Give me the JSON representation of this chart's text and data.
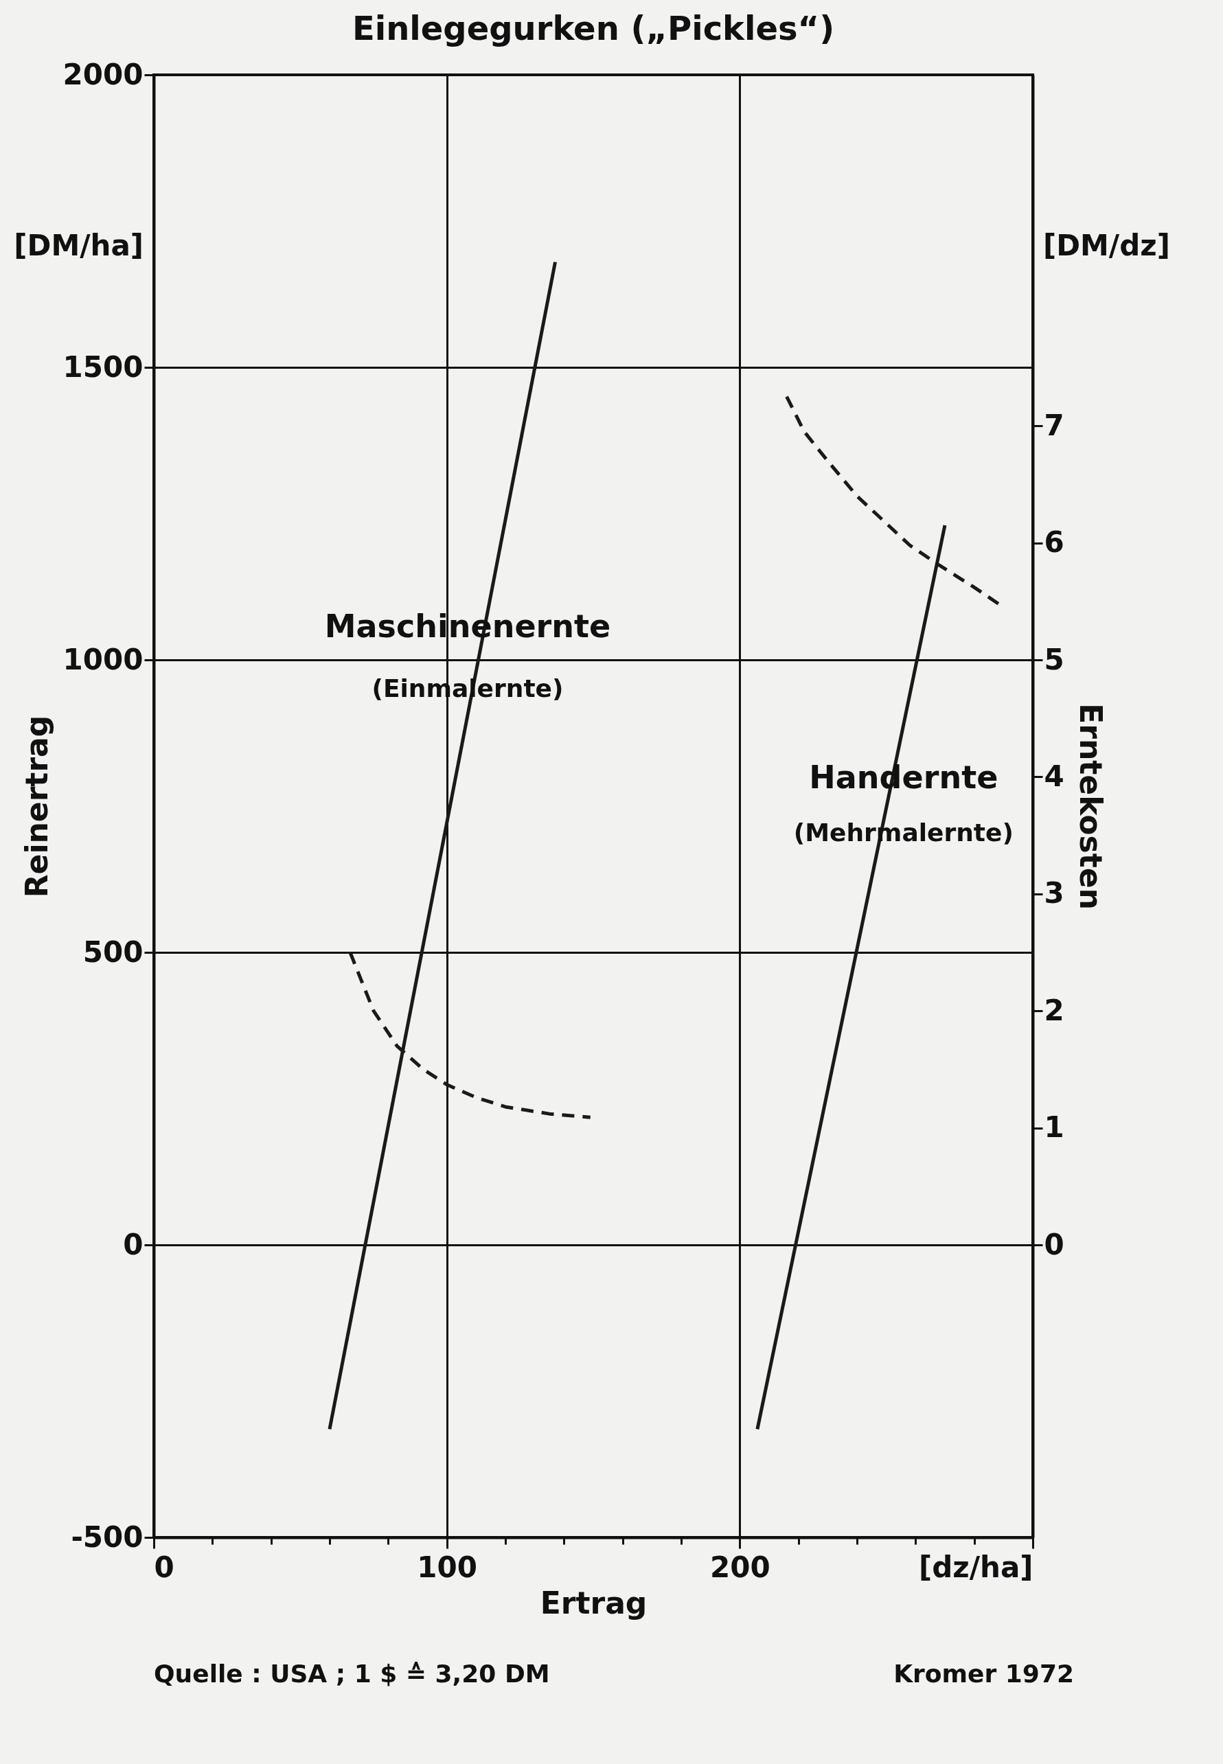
{
  "chart_data": {
    "type": "line",
    "title": "Einlegegurken („Pickles“)",
    "xlabel": "Ertrag",
    "ylabel": "Reinertrag",
    "y2label": "Erntekosten",
    "xlim": [
      0,
      300
    ],
    "xticks": [
      0,
      {
        "value": 20,
        "label": null
      },
      {
        "value": 40,
        "label": null
      },
      {
        "value": 60,
        "label": null
      },
      {
        "value": 80,
        "label": null
      },
      100,
      {
        "value": 120,
        "label": null
      },
      {
        "value": 140,
        "label": null
      },
      {
        "value": 160,
        "label": null
      },
      {
        "value": 180,
        "label": null
      },
      200,
      {
        "value": 220,
        "label": null
      },
      {
        "value": 240,
        "label": null
      },
      {
        "value": 260,
        "label": null
      },
      {
        "value": 280,
        "label": null
      },
      {
        "value": 300,
        "label": "[dz/ha]"
      }
    ],
    "ylim": [
      -500,
      2000
    ],
    "yticks": [
      -500,
      0,
      500,
      1000,
      1500,
      2000
    ],
    "y2lim": [
      -2.5,
      10
    ],
    "y2ticks": [
      0,
      1,
      2,
      3,
      4,
      5,
      6,
      7
    ],
    "grid": true,
    "line_style": "solid",
    "series": [
      {
        "color": "#1a1a1a",
        "x": [
          60,
          137
        ],
        "values": [
          -315,
          1680
        ]
      },
      {
        "color": "#1a1a1a",
        "x": [
          206,
          270
        ],
        "values": [
          -315,
          1230
        ]
      },
      {
        "color": "#1a1a1a",
        "axis": "y2",
        "line_style": "dashed",
        "x": [
          67,
          75,
          83,
          92,
          100,
          110,
          120,
          135,
          149
        ],
        "values": [
          2.5,
          2.0,
          1.7,
          1.5,
          1.37,
          1.26,
          1.18,
          1.12,
          1.09
        ]
      },
      {
        "color": "#1a1a1a",
        "axis": "y2",
        "line_style": "dashed",
        "x": [
          216,
          222,
          230,
          240,
          249,
          258,
          268,
          280,
          290
        ],
        "values": [
          7.25,
          6.95,
          6.7,
          6.4,
          6.19,
          5.98,
          5.81,
          5.62,
          5.45
        ]
      }
    ],
    "annotations": [
      "[DM/ha]",
      "[DM/dz]",
      "Quelle : USA ; 1 $ ≙ 3,20 DM",
      "Kromer 1972",
      "Maschinenernte",
      "(Einmalernte)",
      "Handernte",
      "(Mehrmalernte)"
    ]
  }
}
